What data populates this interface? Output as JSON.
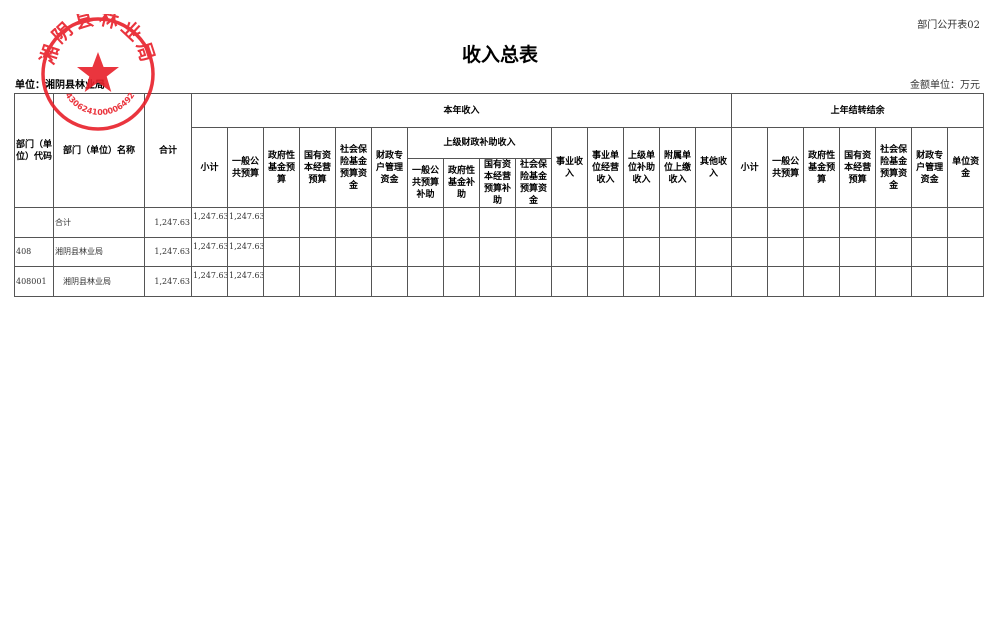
{
  "form_id": "部门公开表02",
  "title": "收入总表",
  "unit_label": "单位：湘阴县林业局",
  "money_unit": "金额单位：万元",
  "stamp": {
    "text": "湘阴县林业局",
    "code": "430624100006492",
    "color": "#e8202a"
  },
  "headers": {
    "code": "部门（单位）代码",
    "name": "部门（单位）名称",
    "total": "合计",
    "current_year": "本年收入",
    "prior_year": "上年结转结余",
    "cy": {
      "subtotal": "小计",
      "general": "一般公共预算",
      "gov_fund": "政府性基金预算",
      "state_capital": "国有资本经营预算",
      "social_ins": "社会保险基金预算资金",
      "special_acct": "财政专户管理资金",
      "upper_subsidy": "上级财政补助收入",
      "upper": {
        "general": "一般公共预算补助",
        "gov_fund": "政府性基金补助",
        "state_capital": "国有资本经营预算补助",
        "social_ins": "社会保险基金预算资金"
      },
      "business": "事业收入",
      "biz_operation": "事业单位经营收入",
      "upper_unit": "上级单位补助收入",
      "affiliated": "附属单位上缴收入",
      "other": "其他收入"
    },
    "py": {
      "subtotal": "小计",
      "general": "一般公共预算",
      "gov_fund": "政府性基金预算",
      "state_capital": "国有资本经营预算",
      "social_ins": "社会保险基金预算资金",
      "special_acct": "财政专户管理资金",
      "unit_funds": "单位资金"
    }
  },
  "rows": [
    {
      "code": "",
      "name": "合计",
      "total": "1,247.63",
      "subtotal": "1,247.63",
      "general": "1,247.63"
    },
    {
      "code": "408",
      "name": "湘阴县林业局",
      "total": "1,247.63",
      "subtotal": "1,247.63",
      "general": "1,247.63"
    },
    {
      "code": "408001",
      "name": "　湘阴县林业局",
      "total": "1,247.63",
      "subtotal": "1,247.63",
      "general": "1,247.63"
    }
  ]
}
